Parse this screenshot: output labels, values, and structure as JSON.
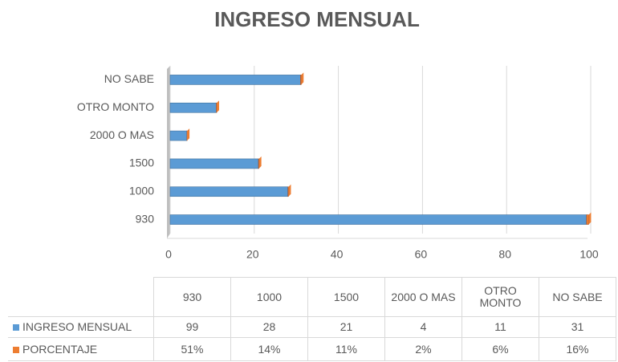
{
  "chart_data": {
    "type": "stacked_bar_horizontal",
    "title": "INGRESO MENSUAL",
    "categories": [
      "930",
      "1000",
      "1500",
      "2000 O MAS",
      "OTRO MONTO",
      "NO SABE"
    ],
    "series": [
      {
        "name": "INGRESO MENSUAL",
        "color": "#5b9bd5",
        "values": [
          99,
          28,
          21,
          4,
          11,
          31
        ]
      },
      {
        "name": "PORCENTAJE",
        "color": "#ed7d31",
        "values": [
          0.51,
          0.14,
          0.11,
          0.02,
          0.06,
          0.16
        ],
        "value_labels": [
          "51%",
          "14%",
          "11%",
          "2%",
          "6%",
          "16%"
        ]
      }
    ],
    "xlim": [
      0,
      100
    ],
    "xticks": [
      0,
      20,
      40,
      60,
      80,
      100
    ],
    "grid": true,
    "data_table": true
  }
}
